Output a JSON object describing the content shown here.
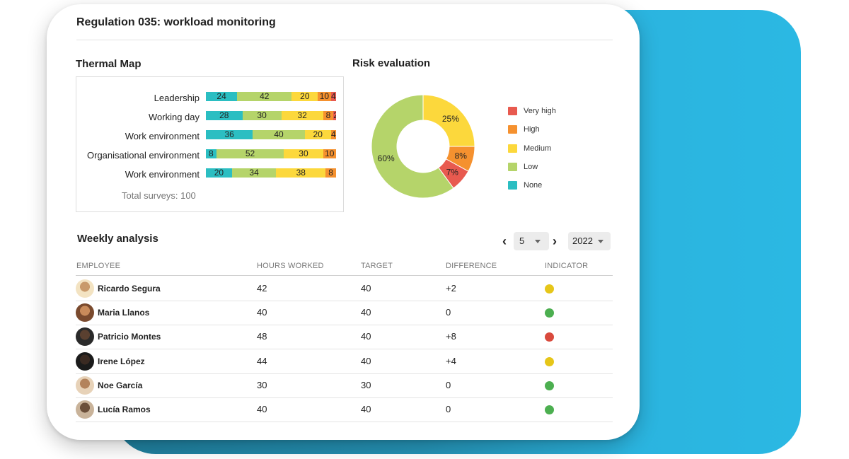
{
  "title": "Regulation 035: workload monitoring",
  "thermal": {
    "heading": "Thermal Map",
    "total": "Total surveys: 100",
    "rows": [
      {
        "label": "Leadership",
        "values": [
          24,
          42,
          20,
          10,
          4
        ]
      },
      {
        "label": "Working day",
        "values": [
          28,
          30,
          32,
          8,
          2
        ]
      },
      {
        "label": "Work environment",
        "values": [
          36,
          40,
          20,
          4
        ]
      },
      {
        "label": "Organisational environment",
        "values": [
          8,
          52,
          30,
          10
        ]
      },
      {
        "label": "Work environment",
        "values": [
          20,
          34,
          38,
          8
        ]
      }
    ],
    "segment_colors": {
      "0": [
        "#2bbec2",
        "#b5d46a",
        "#fcd83c",
        "#f5912f",
        "#e85a4f"
      ],
      "1": [
        "#2bbec2",
        "#b5d46a",
        "#fcd83c",
        "#f5912f",
        "#e85a4f"
      ],
      "2": [
        "#2bbec2",
        "#b5d46a",
        "#fcd83c",
        "#f5912f"
      ],
      "3": [
        "#2bbec2",
        "#b5d46a",
        "#fcd83c",
        "#f5912f"
      ],
      "4": [
        "#2bbec2",
        "#b5d46a",
        "#fcd83c",
        "#f5912f"
      ]
    }
  },
  "risk": {
    "heading": "Risk evaluation",
    "chart_data": {
      "type": "pie",
      "title": "Risk evaluation",
      "slices": [
        {
          "name": "Medium",
          "value": 25,
          "label": "25%",
          "color": "#fcd83c"
        },
        {
          "name": "High",
          "value": 8,
          "label": "8%",
          "color": "#f5912f"
        },
        {
          "name": "Very high",
          "value": 7,
          "label": "7%",
          "color": "#e85a4f"
        },
        {
          "name": "Low",
          "value": 60,
          "label": "60%",
          "color": "#b5d46a"
        }
      ]
    },
    "legend": [
      {
        "label": "Very high",
        "color": "#e85a4f"
      },
      {
        "label": "High",
        "color": "#f5912f"
      },
      {
        "label": "Medium",
        "color": "#fcd83c"
      },
      {
        "label": "Low",
        "color": "#b5d46a"
      },
      {
        "label": "None",
        "color": "#2bbec2"
      }
    ]
  },
  "weekly": {
    "heading": "Weekly analysis",
    "week": "5",
    "year": "2022",
    "prev": "‹",
    "next": "›",
    "columns": [
      "EMPLOYEE",
      "HOURS WORKED",
      "TARGET",
      "DIFFERENCE",
      "INDICATOR"
    ],
    "rows": [
      {
        "name": "Ricardo Segura",
        "hours": "42",
        "target": "40",
        "diff": "+2",
        "indicator": "#e6c619"
      },
      {
        "name": "Maria Llanos",
        "hours": "40",
        "target": "40",
        "diff": "0",
        "indicator": "#4caf50"
      },
      {
        "name": "Patricio Montes",
        "hours": "48",
        "target": "40",
        "diff": "+8",
        "indicator": "#d94a3d"
      },
      {
        "name": "Irene López",
        "hours": "44",
        "target": "40",
        "diff": "+4",
        "indicator": "#e6c619"
      },
      {
        "name": "Noe García",
        "hours": "30",
        "target": "30",
        "diff": "0",
        "indicator": "#4caf50"
      },
      {
        "name": "Lucía Ramos",
        "hours": "40",
        "target": "40",
        "diff": "0",
        "indicator": "#4caf50"
      }
    ]
  }
}
